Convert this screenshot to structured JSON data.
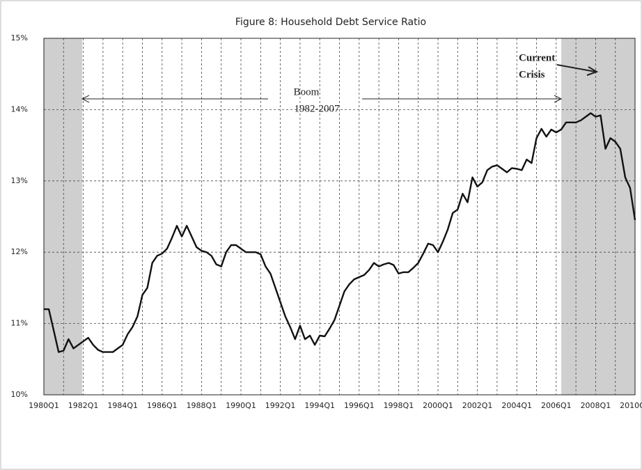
{
  "chart_data": {
    "type": "line",
    "title": "Figure 8: Household Debt Service Ratio",
    "annotations": [
      "Boom",
      "1982-2007",
      "Current",
      "Crisis"
    ],
    "categories": [
      "1980Q1",
      null,
      null,
      null,
      null,
      null,
      null,
      null,
      "1982Q1",
      null,
      null,
      null,
      null,
      null,
      null,
      null,
      "1984Q1",
      null,
      null,
      null,
      null,
      null,
      null,
      null,
      "1986Q1",
      null,
      null,
      null,
      null,
      null,
      null,
      null,
      "1988Q1",
      null,
      null,
      null,
      null,
      null,
      null,
      null,
      "1990Q1",
      null,
      null,
      null,
      null,
      null,
      null,
      null,
      "1992Q1",
      null,
      null,
      null,
      null,
      null,
      null,
      null,
      "1994Q1",
      null,
      null,
      null,
      null,
      null,
      null,
      null,
      "1996Q1",
      null,
      null,
      null,
      null,
      null,
      null,
      null,
      "1998Q1",
      null,
      null,
      null,
      null,
      null,
      null,
      null,
      "2000Q1",
      null,
      null,
      null,
      null,
      null,
      null,
      null,
      "2002Q1",
      null,
      null,
      null,
      null,
      null,
      null,
      null,
      "2004Q1",
      null,
      null,
      null,
      null,
      null,
      null,
      null,
      "2006Q1",
      null,
      null,
      null,
      null,
      null,
      null,
      null,
      "2008Q1",
      null,
      null,
      null,
      null,
      null,
      null,
      null,
      "2010Q1"
    ],
    "values": [
      11.2,
      11.2,
      10.9,
      10.6,
      10.62,
      10.78,
      10.65,
      10.7,
      10.75,
      10.8,
      10.7,
      10.63,
      10.6,
      10.6,
      10.6,
      10.65,
      10.7,
      10.85,
      10.95,
      11.1,
      11.4,
      11.5,
      11.85,
      11.95,
      11.98,
      12.05,
      12.2,
      12.37,
      12.22,
      12.37,
      12.22,
      12.07,
      12.02,
      12.0,
      11.95,
      11.83,
      11.8,
      12.0,
      12.1,
      12.1,
      12.05,
      12.0,
      12.0,
      12.0,
      11.97,
      11.8,
      11.7,
      11.5,
      11.3,
      11.1,
      10.95,
      10.78,
      10.97,
      10.78,
      10.83,
      10.7,
      10.83,
      10.82,
      10.93,
      11.05,
      11.25,
      11.45,
      11.55,
      11.62,
      11.65,
      11.68,
      11.75,
      11.85,
      11.8,
      11.83,
      11.85,
      11.82,
      11.7,
      11.72,
      11.72,
      11.78,
      11.85,
      11.98,
      12.12,
      12.1,
      12.0,
      12.15,
      12.32,
      12.55,
      12.6,
      12.82,
      12.7,
      13.05,
      12.92,
      12.98,
      13.15,
      13.2,
      13.22,
      13.17,
      13.12,
      13.18,
      13.17,
      13.15,
      13.3,
      13.25,
      13.6,
      13.73,
      13.62,
      13.72,
      13.68,
      13.72,
      13.82,
      13.82,
      13.82,
      13.85,
      13.9,
      13.95,
      13.9,
      13.92,
      13.45,
      13.6,
      13.55,
      13.45,
      13.05,
      12.9,
      12.45
    ],
    "color": "#111111",
    "ylim": [
      10,
      15
    ],
    "yticks": [
      {
        "value": 10,
        "label": "10%"
      },
      {
        "value": 11,
        "label": "11%"
      },
      {
        "value": 12,
        "label": "12%"
      },
      {
        "value": 13,
        "label": "13%"
      },
      {
        "value": 14,
        "label": "14%"
      },
      {
        "value": 15,
        "label": "15%"
      }
    ],
    "grid": true
  }
}
